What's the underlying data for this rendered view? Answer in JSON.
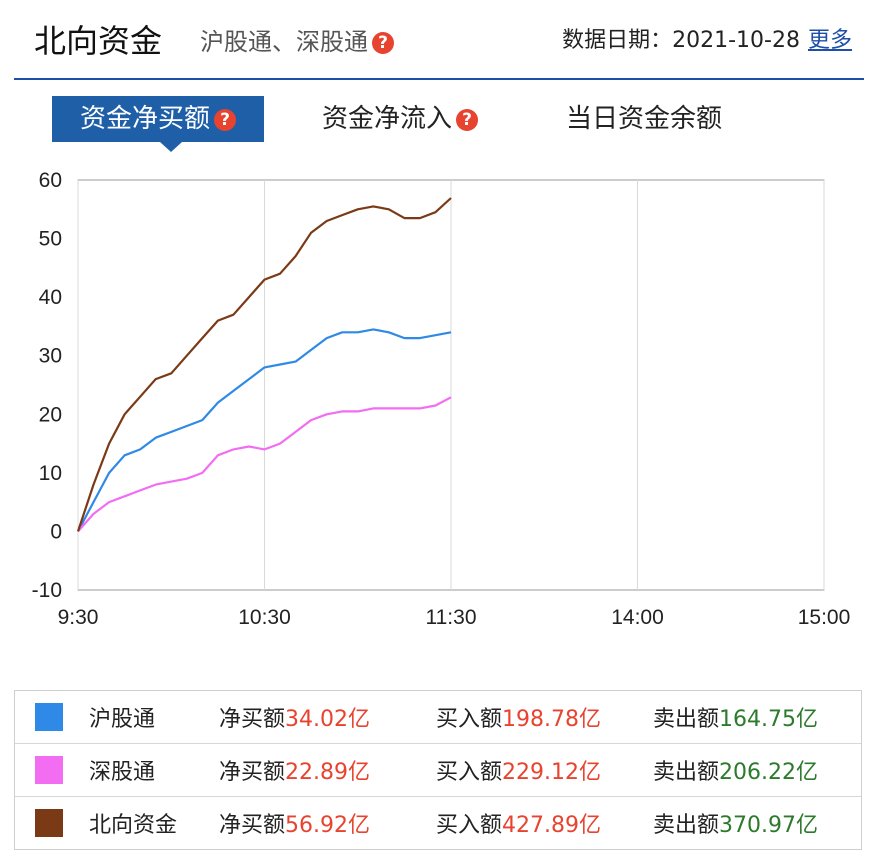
{
  "header": {
    "title": "北向资金",
    "subtitle": "沪股通、深股通",
    "date_label": "数据日期：",
    "date_value": "2021-10-28",
    "more_label": "更多"
  },
  "tabs": [
    {
      "label": "资金净买额",
      "active": true
    },
    {
      "label": "资金净流入",
      "active": false
    },
    {
      "label": "当日资金余额",
      "active": false
    }
  ],
  "colors": {
    "accent": "#1f5fa8",
    "hgt": "#2e8ae6",
    "sgt": "#f26df2",
    "north": "#7a3a16",
    "buy_red": "#e8432f",
    "sell_green": "#2c7a2c"
  },
  "chart_data": {
    "type": "line",
    "x_ticks": [
      "9:30",
      "10:30",
      "11:30",
      "14:00",
      "15:00"
    ],
    "y_ticks": [
      60,
      50,
      40,
      30,
      20,
      10,
      0,
      -10
    ],
    "ylim": [
      -10,
      60
    ],
    "grid": "vertical",
    "series": [
      {
        "name": "沪股通",
        "color": "#2e8ae6",
        "x": [
          "9:30",
          "9:35",
          "9:40",
          "9:45",
          "9:50",
          "9:55",
          "10:00",
          "10:05",
          "10:10",
          "10:15",
          "10:20",
          "10:25",
          "10:30",
          "10:35",
          "10:40",
          "10:45",
          "10:50",
          "10:55",
          "11:00",
          "11:05",
          "11:10",
          "11:15",
          "11:20",
          "11:25",
          "11:30"
        ],
        "values": [
          0,
          5,
          10,
          13,
          14,
          16,
          17,
          18,
          19,
          22,
          24,
          26,
          28,
          28.5,
          29,
          31,
          33,
          34,
          34,
          34.5,
          34,
          33,
          33,
          33.5,
          34
        ]
      },
      {
        "name": "深股通",
        "color": "#f26df2",
        "x": [
          "9:30",
          "9:35",
          "9:40",
          "9:45",
          "9:50",
          "9:55",
          "10:00",
          "10:05",
          "10:10",
          "10:15",
          "10:20",
          "10:25",
          "10:30",
          "10:35",
          "10:40",
          "10:45",
          "10:50",
          "10:55",
          "11:00",
          "11:05",
          "11:10",
          "11:15",
          "11:20",
          "11:25",
          "11:30"
        ],
        "values": [
          0,
          3,
          5,
          6,
          7,
          8,
          8.5,
          9,
          10,
          13,
          14,
          14.5,
          14,
          15,
          17,
          19,
          20,
          20.5,
          20.5,
          21,
          21,
          21,
          21,
          21.5,
          22.9
        ]
      },
      {
        "name": "北向资金",
        "color": "#7a3a16",
        "x": [
          "9:30",
          "9:35",
          "9:40",
          "9:45",
          "9:50",
          "9:55",
          "10:00",
          "10:05",
          "10:10",
          "10:15",
          "10:20",
          "10:25",
          "10:30",
          "10:35",
          "10:40",
          "10:45",
          "10:50",
          "10:55",
          "11:00",
          "11:05",
          "11:10",
          "11:15",
          "11:20",
          "11:25",
          "11:30"
        ],
        "values": [
          0,
          8,
          15,
          20,
          23,
          26,
          27,
          30,
          33,
          36,
          37,
          40,
          43,
          44,
          47,
          51,
          53,
          54,
          55,
          55.5,
          55,
          53.5,
          53.5,
          54.5,
          56.92
        ]
      }
    ]
  },
  "legend": [
    {
      "name": "沪股通",
      "color": "#2e8ae6",
      "net_label": "净买额",
      "net": "34.02亿",
      "buy_label": "买入额",
      "buy": "198.78亿",
      "sell_label": "卖出额",
      "sell": "164.75亿"
    },
    {
      "name": "深股通",
      "color": "#f26df2",
      "net_label": "净买额",
      "net": "22.89亿",
      "buy_label": "买入额",
      "buy": "229.12亿",
      "sell_label": "卖出额",
      "sell": "206.22亿"
    },
    {
      "name": "北向资金",
      "color": "#7a3a16",
      "net_label": "净买额",
      "net": "56.92亿",
      "buy_label": "买入额",
      "buy": "427.89亿",
      "sell_label": "卖出额",
      "sell": "370.97亿"
    }
  ]
}
